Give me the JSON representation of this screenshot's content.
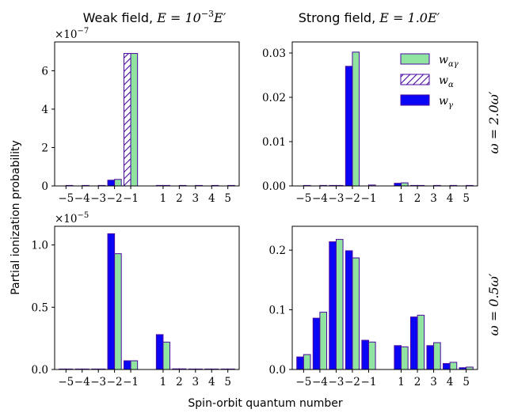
{
  "figure": {
    "ylabel": "Partial ionization probability",
    "xlabel": "Spin-orbit quantum number",
    "col_titles": [
      {
        "text": "Weak field, ",
        "math": "E = 10",
        "sup": "−3",
        "tail": "E′"
      },
      {
        "text": "Strong field, ",
        "math": "E = 1.0E′",
        "sup": "",
        "tail": ""
      }
    ],
    "row_labels": [
      "ω = 2.0ω′",
      "ω = 0.5ω′"
    ],
    "legend": {
      "placement": "upper-right of top-right panel",
      "entries": [
        {
          "label": "w",
          "sub": "αγ",
          "style": "green"
        },
        {
          "label": "w",
          "sub": "α",
          "style": "hatched"
        },
        {
          "label": "w",
          "sub": "γ",
          "style": "blue"
        }
      ]
    },
    "colors": {
      "green": "#90e4a0",
      "blue": "#0a05f5",
      "edge": "#4a0a9e"
    }
  },
  "chart_data": [
    {
      "type": "bar",
      "panel": "top-left",
      "x": [
        -5,
        -4,
        -3,
        -2,
        -1,
        1,
        2,
        3,
        4,
        5
      ],
      "xticklabels": [
        "−5",
        "−4",
        "−3",
        "−2",
        "−1",
        "1",
        "2",
        "3",
        "4",
        "5"
      ],
      "ylim": [
        0,
        7.5
      ],
      "yticks": [
        0,
        2,
        4,
        6
      ],
      "yticklabels": [
        "0",
        "2",
        "4",
        "6"
      ],
      "offset_label": {
        "base": "×10",
        "exp": "−7"
      },
      "series": [
        {
          "name": "w_γ",
          "style": "blue",
          "values": [
            0,
            0,
            0,
            0.3,
            0,
            0.02,
            0,
            0,
            0,
            0
          ]
        },
        {
          "name": "w_α",
          "style": "hatched",
          "values": [
            0,
            0,
            0,
            0,
            6.9,
            0,
            0,
            0,
            0,
            0
          ]
        },
        {
          "name": "w_αγ",
          "style": "green",
          "values": [
            0.02,
            0.02,
            0.02,
            0.34,
            6.9,
            0.02,
            0.02,
            0.01,
            0.01,
            0.01
          ]
        }
      ]
    },
    {
      "type": "bar",
      "panel": "top-right",
      "x": [
        -5,
        -4,
        -3,
        -2,
        -1,
        1,
        2,
        3,
        4,
        5
      ],
      "xticklabels": [
        "−5",
        "−4",
        "−3",
        "−2",
        "−1",
        "1",
        "2",
        "3",
        "4",
        "5"
      ],
      "ylim": [
        0,
        0.0325
      ],
      "yticks": [
        0,
        0.01,
        0.02,
        0.03
      ],
      "yticklabels": [
        "0.00",
        "0.01",
        "0.02",
        "0.03"
      ],
      "offset_label": null,
      "series": [
        {
          "name": "w_γ",
          "style": "blue",
          "values": [
            0,
            0,
            0.0001,
            0.027,
            0,
            0.0006,
            0.0001,
            0,
            0,
            0
          ]
        },
        {
          "name": "w_α",
          "style": "hatched",
          "values": [
            0,
            0,
            0,
            0,
            0,
            0,
            0,
            0,
            0,
            0
          ]
        },
        {
          "name": "w_αγ",
          "style": "green",
          "values": [
            5e-05,
            5e-05,
            0.0001,
            0.0302,
            0.0002,
            0.0007,
            0.0001,
            5e-05,
            5e-05,
            5e-05
          ]
        }
      ]
    },
    {
      "type": "bar",
      "panel": "bottom-left",
      "x": [
        -5,
        -4,
        -3,
        -2,
        -1,
        1,
        2,
        3,
        4,
        5
      ],
      "xticklabels": [
        "−5",
        "−4",
        "−3",
        "−2",
        "−1",
        "1",
        "2",
        "3",
        "4",
        "5"
      ],
      "ylim": [
        0,
        1.15
      ],
      "yticks": [
        0,
        0.5,
        1.0
      ],
      "yticklabels": [
        "0.0",
        "0.5",
        "1.0"
      ],
      "offset_label": {
        "base": "×10",
        "exp": "−5"
      },
      "series": [
        {
          "name": "w_γ",
          "style": "blue",
          "values": [
            0.003,
            0.003,
            0.003,
            1.09,
            0.07,
            0.28,
            0.005,
            0.003,
            0.003,
            0.003
          ]
        },
        {
          "name": "w_α",
          "style": "hatched",
          "values": [
            0,
            0,
            0,
            0,
            0,
            0,
            0,
            0,
            0,
            0
          ]
        },
        {
          "name": "w_αγ",
          "style": "green",
          "values": [
            0.003,
            0.003,
            0.003,
            0.93,
            0.07,
            0.22,
            0.005,
            0.003,
            0.003,
            0.003
          ]
        }
      ]
    },
    {
      "type": "bar",
      "panel": "bottom-right",
      "x": [
        -5,
        -4,
        -3,
        -2,
        -1,
        1,
        2,
        3,
        4,
        5
      ],
      "xticklabels": [
        "−5",
        "−4",
        "−3",
        "−2",
        "−1",
        "1",
        "2",
        "3",
        "4",
        "5"
      ],
      "ylim": [
        0,
        0.24
      ],
      "yticks": [
        0,
        0.1,
        0.2
      ],
      "yticklabels": [
        "0.0",
        "0.1",
        "0.2"
      ],
      "offset_label": null,
      "series": [
        {
          "name": "w_γ",
          "style": "blue",
          "values": [
            0.021,
            0.086,
            0.214,
            0.199,
            0.049,
            0.04,
            0.088,
            0.04,
            0.01,
            0.003
          ]
        },
        {
          "name": "w_α",
          "style": "hatched",
          "values": [
            0,
            0,
            0,
            0,
            0,
            0,
            0,
            0,
            0,
            0
          ]
        },
        {
          "name": "w_αγ",
          "style": "green",
          "values": [
            0.025,
            0.096,
            0.218,
            0.187,
            0.046,
            0.038,
            0.091,
            0.045,
            0.012,
            0.004
          ]
        }
      ]
    }
  ]
}
